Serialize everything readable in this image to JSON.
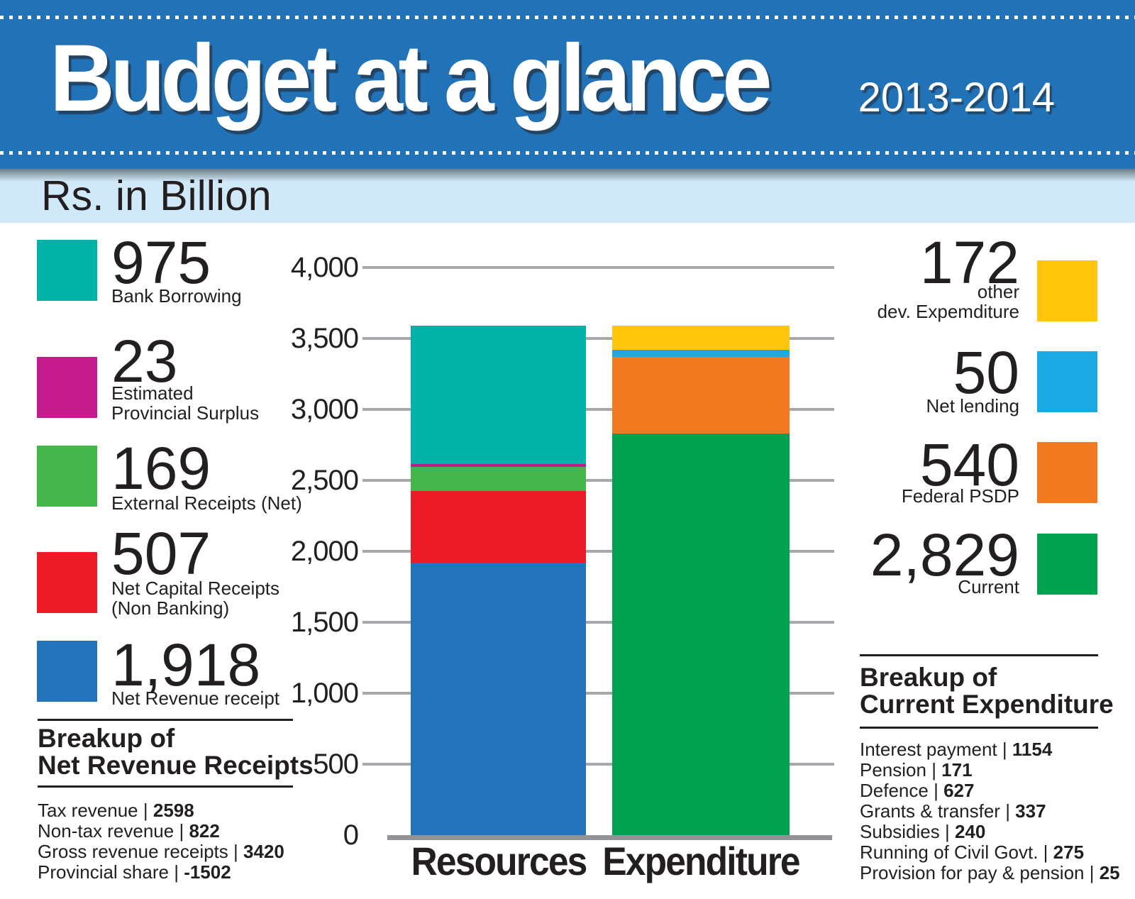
{
  "header": {
    "title": "Budget at a glance",
    "year": "2013-2014",
    "unit_label": "Rs. in Billion"
  },
  "left_legend": {
    "items": [
      {
        "value": "975",
        "lines": [
          "Bank Borrowing"
        ],
        "color": "#00b3a6"
      },
      {
        "value": "23",
        "lines": [
          "Estimated",
          "Provincial Surplus"
        ],
        "color": "#c31a8c"
      },
      {
        "value": "169",
        "lines": [
          "External Receipts (Net)"
        ],
        "color": "#45b64b"
      },
      {
        "value": "507",
        "lines": [
          "Net Capital Receipts",
          "(Non Banking)"
        ],
        "color": "#ec1c26"
      },
      {
        "value": "1,918",
        "lines": [
          "Net Revenue receipt"
        ],
        "color": "#2273b9"
      }
    ]
  },
  "right_legend": {
    "items": [
      {
        "value": "172",
        "lines": [
          "other",
          "dev. Expemditure"
        ],
        "color": "#ffc60b"
      },
      {
        "value": "50",
        "lines": [
          "Net lending"
        ],
        "color": "#1ba9e3"
      },
      {
        "value": "540",
        "lines": [
          "Federal PSDP"
        ],
        "color": "#f1791f"
      },
      {
        "value": "2,829",
        "lines": [
          "Current"
        ],
        "color": "#00a14f"
      }
    ]
  },
  "left_breakup": {
    "heading_lines": [
      "Breakup of",
      "Net Revenue Receipts"
    ],
    "separator": "|",
    "rows": [
      {
        "label": "Tax revenue",
        "value": "2598"
      },
      {
        "label": "Non-tax revenue",
        "value": "822"
      },
      {
        "label": "Gross revenue receipts",
        "value": "3420"
      },
      {
        "label": "Provincial share",
        "value": "-1502"
      }
    ]
  },
  "right_breakup": {
    "heading_lines": [
      "Breakup of",
      "Current Expenditure"
    ],
    "separator": "|",
    "rows": [
      {
        "label": "Interest payment",
        "value": "1154"
      },
      {
        "label": "Pension",
        "value": "171"
      },
      {
        "label": "Defence",
        "value": "627"
      },
      {
        "label": "Grants & transfer",
        "value": "337"
      },
      {
        "label": "Subsidies",
        "value": "240"
      },
      {
        "label": "Running of Civil Govt.",
        "value": "275"
      },
      {
        "label": "Provision for pay & pension",
        "value": "25"
      }
    ]
  },
  "chart_data": {
    "type": "bar",
    "stacked": true,
    "title": "Budget at a glance 2013-2014",
    "unit": "Rs. in Billion",
    "categories": [
      "Resources",
      "Expenditure"
    ],
    "ylim": [
      0,
      4000
    ],
    "grid": true,
    "legend_position": "sides",
    "y_ticks": [
      {
        "label": "4,000",
        "value": 4000
      },
      {
        "label": "3,500",
        "value": 3500
      },
      {
        "label": "3,000",
        "value": 3000
      },
      {
        "label": "2,500",
        "value": 2500
      },
      {
        "label": "2,000",
        "value": 2000
      },
      {
        "label": "1,500",
        "value": 1500
      },
      {
        "label": "1,000",
        "value": 1000
      },
      {
        "label": "500",
        "value": 500
      },
      {
        "label": "0",
        "value": 0
      }
    ],
    "series": [
      {
        "category": "Resources",
        "total": 3592,
        "segments": [
          {
            "name": "Net Revenue receipt",
            "value": 1918,
            "color": "#2273b9"
          },
          {
            "name": "Net Capital Receipts (Non Banking)",
            "value": 507,
            "color": "#ec1c26"
          },
          {
            "name": "External Receipts (Net)",
            "value": 169,
            "color": "#45b64b"
          },
          {
            "name": "Estimated Provincial Surplus",
            "value": 23,
            "color": "#c31a8c"
          },
          {
            "name": "Bank Borrowing",
            "value": 975,
            "color": "#00b3a6"
          }
        ]
      },
      {
        "category": "Expenditure",
        "total": 3591,
        "segments": [
          {
            "name": "Current",
            "value": 2829,
            "color": "#00a14f"
          },
          {
            "name": "Federal PSDP",
            "value": 540,
            "color": "#f1791f"
          },
          {
            "name": "Net lending",
            "value": 50,
            "color": "#1ba9e3"
          },
          {
            "name": "other dev. Expemditure",
            "value": 172,
            "color": "#ffc60b"
          }
        ]
      }
    ]
  }
}
